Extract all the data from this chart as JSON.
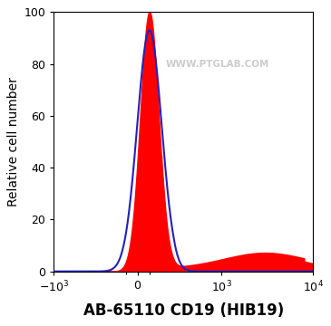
{
  "xlabel": "AB-65110 CD19 (HIB19)",
  "ylabel": "Relative cell number",
  "ylim": [
    0,
    100
  ],
  "yticks": [
    0,
    20,
    40,
    60,
    80,
    100
  ],
  "watermark": "WWW.PTGLAB.COM",
  "watermark_color": "#cccccc",
  "background_color": "#ffffff",
  "blue_curve_color": "#2222bb",
  "red_fill_color": "#ff0000",
  "xlabel_fontsize": 12,
  "ylabel_fontsize": 10,
  "tick_fontsize": 9,
  "linthresh": 300,
  "linscale": 0.35
}
